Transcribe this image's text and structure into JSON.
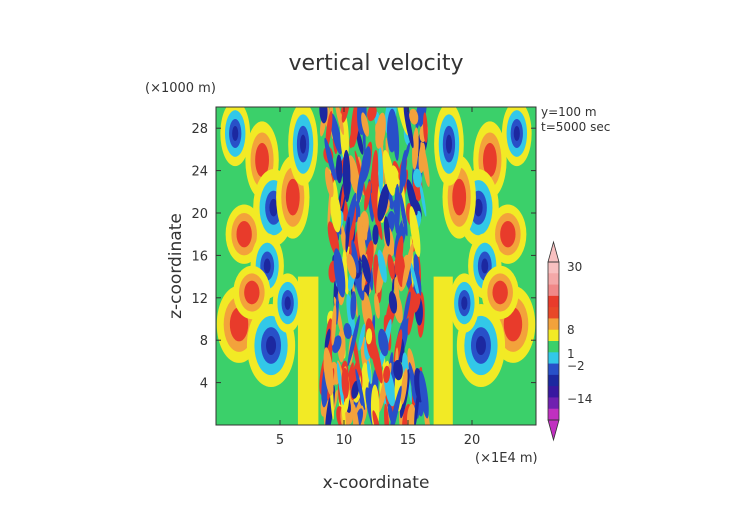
{
  "chart_data": {
    "type": "heatmap",
    "title": "vertical velocity",
    "xlabel": "x-coordinate",
    "ylabel": "z-coordinate",
    "x_unit": "(×1E4 m)",
    "y_unit": "(×1000 m)",
    "annotations": [
      "y=100 m",
      "t=5000 sec"
    ],
    "x_ticks": [
      5,
      10,
      15,
      20
    ],
    "y_ticks": [
      4,
      8,
      12,
      16,
      20,
      24,
      28
    ],
    "xlim": [
      0,
      25
    ],
    "ylim": [
      0,
      30
    ],
    "colorbar_labels": [
      "30",
      "8",
      "1",
      "−2",
      "−14"
    ],
    "colorbar_values": [
      30,
      8,
      1,
      -2,
      -14
    ],
    "colors": {
      "background": "#3bd06a",
      "yellow": "#f2ea25",
      "orange": "#f3a23b",
      "red": "#e83b2b",
      "cyan": "#32c8e8",
      "blue": "#2850c8",
      "navy": "#1c28a0",
      "magenta": "#c030c0",
      "pink": "#f8c0c0"
    }
  }
}
